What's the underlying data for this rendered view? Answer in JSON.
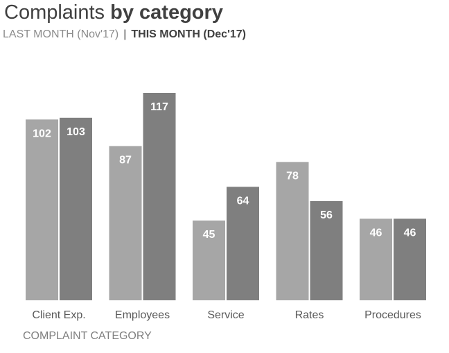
{
  "chart_data": {
    "type": "bar",
    "title_part1": "Complaints",
    "title_part2": "by category",
    "legend_last": "LAST MONTH (Nov'17)",
    "legend_sep": "|",
    "legend_this": "THIS MONTH (Dec'17)",
    "xlabel": "COMPLAINT CATEGORY",
    "ylabel": "",
    "categories": [
      "Client Exp.",
      "Employees",
      "Service",
      "Rates",
      "Procedures"
    ],
    "series": [
      {
        "name": "LAST MONTH (Nov'17)",
        "values": [
          102,
          87,
          45,
          78,
          46
        ],
        "color": "#a6a6a6"
      },
      {
        "name": "THIS MONTH (Dec'17)",
        "values": [
          103,
          117,
          64,
          56,
          46
        ],
        "color": "#7f7f7f"
      }
    ],
    "ylim": [
      0,
      117
    ],
    "grid": false
  }
}
